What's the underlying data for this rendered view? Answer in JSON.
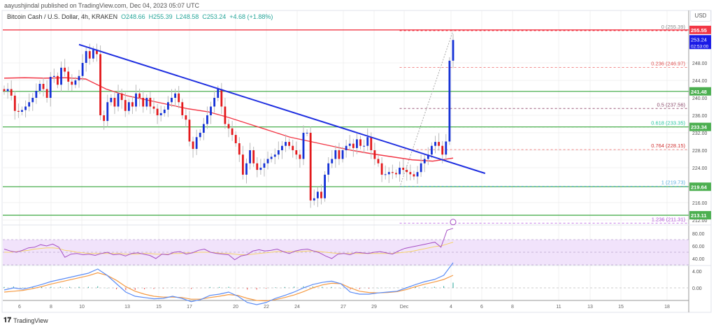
{
  "header": {
    "published": "aayushjindal published on TradingView.com, Dec 04, 2023 05:07 UTC"
  },
  "legend": {
    "symbol": "Bitcoin Cash / U.S. Dollar, 4h, KRAKEN",
    "open": "O248.66",
    "high": "H255.39",
    "low": "L248.58",
    "close": "C253.24",
    "change": "+4.68 (+1.88%)"
  },
  "currency": "USD",
  "footer": {
    "brand": "TradingView"
  },
  "colors": {
    "up": "#1431d6",
    "down": "#e3191c",
    "ma": "#f23645",
    "trend": "#1f2fe0",
    "support": "#4caf50",
    "resistance": "#f23645",
    "rsi": "#a64fc4",
    "rsi_signal": "#f5d36b",
    "macd": "#5b8cf5",
    "macd_signal": "#f59a42"
  },
  "chart_data": {
    "type": "candlestick",
    "title": "Bitcoin Cash / U.S. Dollar, 4h, KRAKEN",
    "ylim": [
      209,
      258
    ],
    "y_ticks": [
      "248.00",
      "244.00",
      "240.00",
      "236.00",
      "232.00",
      "228.00",
      "224.00",
      "216.00",
      "212.00"
    ],
    "y_tick_values": [
      248,
      244,
      240,
      236,
      232,
      228,
      224,
      216,
      212
    ],
    "x_ticks": [
      "6",
      "8",
      "10",
      "13",
      "15",
      "17",
      "20",
      "22",
      "24",
      "27",
      "29",
      "Dec",
      "4",
      "6",
      "8",
      "11",
      "13",
      "15",
      "18"
    ],
    "closes": [
      241.5,
      242,
      240.5,
      237,
      236.8,
      237.2,
      238,
      239,
      240,
      241.6,
      243.2,
      242,
      240,
      244.8,
      245,
      243,
      246.9,
      246,
      243.7,
      243,
      244,
      245,
      248,
      250.7,
      249,
      251,
      250,
      236,
      234.7,
      239,
      240,
      238,
      241,
      239.5,
      237,
      239,
      238,
      241,
      240,
      238,
      240,
      238,
      237.5,
      236,
      236.5,
      237.3,
      239,
      240,
      241,
      239,
      236,
      235,
      230,
      228.3,
      231,
      232,
      234,
      236,
      238,
      240,
      242,
      238,
      234,
      233,
      231.5,
      229.6,
      227,
      222.4,
      225,
      228,
      225,
      223.5,
      224,
      225,
      226,
      226.5,
      227,
      228,
      229,
      229.9,
      229,
      228,
      227,
      226,
      232,
      232,
      216.5,
      217,
      218.5,
      217,
      222.4,
      225,
      226,
      228,
      226,
      228,
      229,
      229.5,
      228.5,
      230.5,
      229,
      229,
      231,
      228,
      226,
      225,
      222.4,
      222.5,
      223,
      222.8,
      222.5,
      224,
      223.5,
      223,
      222.5,
      222,
      223,
      225,
      226,
      227,
      229,
      229.9,
      229,
      227,
      230,
      248.5,
      253.24
    ],
    "ma100": [
      244.5,
      244.6,
      244.5,
      244.6,
      244.3,
      242,
      240.5,
      239.5,
      238.5,
      237.5,
      236.8,
      235.5,
      234,
      232.5,
      231,
      230,
      229,
      228,
      227.2,
      226.5,
      225.8,
      225.5,
      226.2
    ],
    "trendline": {
      "from_index": 21,
      "to_index": 135,
      "from_price": 252.2,
      "to_price": 222.7
    },
    "horizontal_levels": [
      {
        "price": 255.55,
        "label": "255.55",
        "kind": "resistance"
      },
      {
        "price": 241.48,
        "label": "241.48",
        "kind": "support"
      },
      {
        "price": 233.34,
        "label": "233.34",
        "kind": "support"
      },
      {
        "price": 219.64,
        "label": "219.64",
        "kind": "support"
      },
      {
        "price": 213.11,
        "label": "213.11",
        "kind": "support"
      }
    ],
    "last_price": {
      "label": "253.24",
      "countdown": "02:53:00"
    },
    "fib_start_index": 111,
    "fib_levels": [
      {
        "price": 255.39,
        "label": "0 (255.39)",
        "color": "#888888",
        "line": "#f23645"
      },
      {
        "price": 246.97,
        "label": "0.236 (246.97)",
        "color": "#e05050",
        "line": "#f28a8a"
      },
      {
        "price": 237.56,
        "label": "0.5 (237.56)",
        "color": "#8a4a6a",
        "line": "#9c5a7a"
      },
      {
        "price": 233.35,
        "label": "0.618 (233.35)",
        "color": "#26c6a0",
        "line": "#4caf50"
      },
      {
        "price": 228.15,
        "label": "0.764 (228.15)",
        "color": "#d03030",
        "line": "#f28a8a"
      },
      {
        "price": 219.73,
        "label": "1 (219.73)",
        "color": "#5aafde",
        "line": "#5aafde"
      },
      {
        "price": 211.31,
        "label": "1.236 (211.31)",
        "color": "#b04fd8",
        "line": "#c77de8"
      }
    ],
    "rsi": {
      "ylim": [
        20,
        90
      ],
      "ticks": [
        "80.00",
        "60.00",
        "40.00"
      ],
      "tick_values": [
        80,
        60,
        40
      ],
      "band": [
        30,
        70
      ],
      "values": [
        55,
        52,
        50,
        53,
        57,
        58,
        62,
        60,
        63,
        58,
        42,
        47,
        48,
        46,
        47,
        45,
        48,
        50,
        46,
        47,
        44,
        48,
        49,
        47,
        45,
        40,
        47,
        46,
        50,
        51,
        47,
        49,
        53,
        55,
        50,
        48,
        47,
        46,
        38,
        44,
        46,
        52,
        54,
        52,
        53,
        55,
        51,
        48,
        52,
        54,
        55,
        52,
        49,
        44,
        40,
        47,
        48,
        46,
        50,
        49,
        48,
        50,
        51,
        49,
        47,
        52,
        56,
        58,
        60,
        62,
        64,
        66,
        58,
        85,
        88
      ],
      "signal": [
        50,
        50,
        51,
        52,
        53,
        55,
        56,
        57,
        57,
        56,
        53,
        52,
        50,
        49,
        48,
        48,
        48,
        48,
        48,
        48,
        47,
        47,
        47,
        48,
        48,
        47,
        47,
        47,
        48,
        48,
        49,
        49,
        50,
        50,
        50,
        49,
        48,
        48,
        47,
        46,
        46,
        47,
        48,
        49,
        50,
        51,
        51,
        51,
        51,
        51,
        52,
        52,
        51,
        50,
        49,
        48,
        48,
        48,
        48,
        48,
        48,
        48,
        48,
        48,
        48,
        49,
        50,
        51,
        53,
        55,
        57,
        59,
        60,
        63,
        66
      ]
    },
    "macd": {
      "ylim": [
        -4,
        8
      ],
      "ticks": [
        "4.00",
        "0.00"
      ],
      "tick_values": [
        4,
        0
      ],
      "macd": [
        -0.5,
        0,
        -0.3,
        0.2,
        0.8,
        1.5,
        2,
        2.5,
        3,
        3.5,
        4.5,
        3,
        1,
        -1,
        -2,
        -2.3,
        -2.6,
        -2.5,
        -2,
        -2.5,
        -3.3,
        -2.8,
        -1.8,
        -1.5,
        -1,
        -2,
        -3.5,
        -4,
        -3.5,
        -2.5,
        -1.8,
        -1,
        0,
        0.8,
        1.3,
        1.6,
        1,
        -1,
        -1.5,
        -1.5,
        -1.2,
        -1,
        -0.8,
        0,
        0.8,
        1.5,
        2,
        3,
        6
      ],
      "signal": [
        -1,
        -0.8,
        -0.6,
        -0.2,
        0.3,
        0.9,
        1.4,
        1.9,
        2.4,
        2.9,
        3.6,
        3,
        1.8,
        0.3,
        -0.8,
        -1.5,
        -2,
        -2.2,
        -2.2,
        -2.3,
        -2.7,
        -2.7,
        -2.3,
        -2,
        -1.6,
        -1.8,
        -2.5,
        -3,
        -3.1,
        -2.8,
        -2.3,
        -1.7,
        -0.9,
        0,
        0.7,
        1.1,
        1,
        0,
        -0.8,
        -1.1,
        -1.2,
        -1.1,
        -0.9,
        -0.4,
        0.3,
        0.9,
        1.4,
        2,
        3
      ]
    }
  }
}
